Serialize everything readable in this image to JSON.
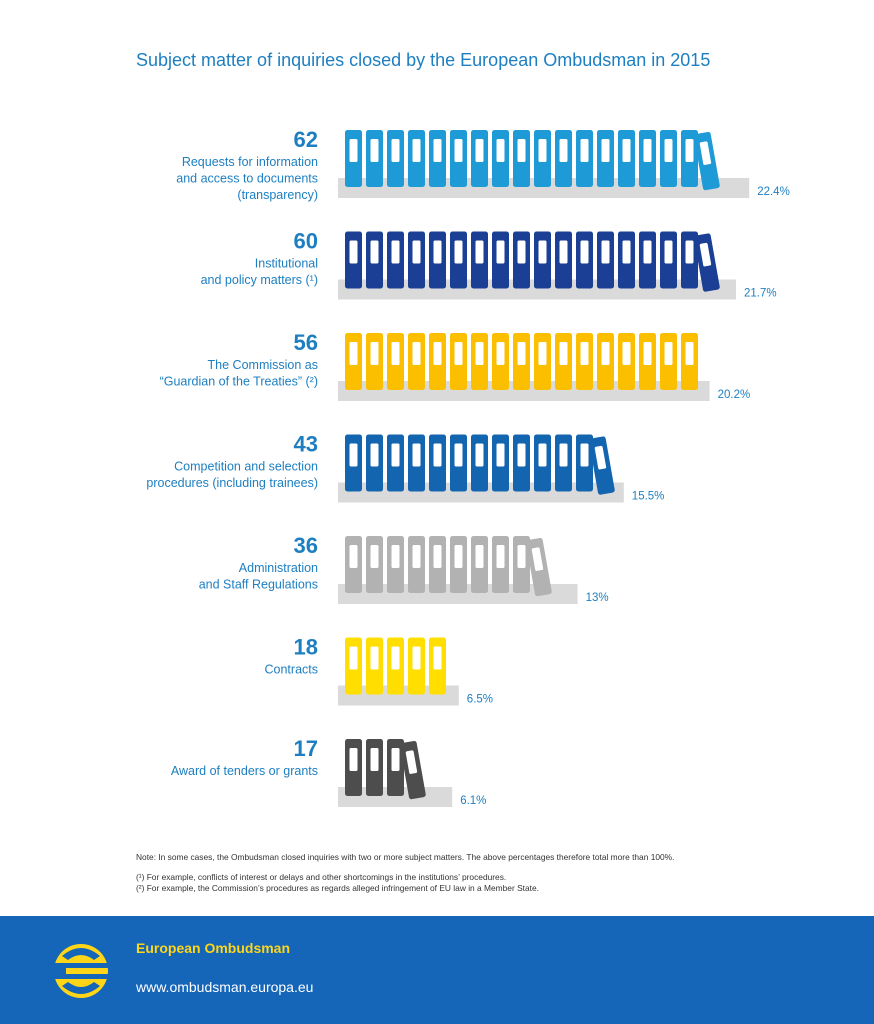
{
  "title": "Subject matter of inquiries closed by the European Ombudsman in 2015",
  "chart_data": {
    "type": "bar",
    "orientation": "horizontal",
    "unit_display": "binders",
    "categories": [
      [
        "Requests for information",
        "and access to documents",
        "(transparency)"
      ],
      [
        "Institutional",
        "and policy matters (¹)"
      ],
      [
        "The Commission as",
        "“Guardian of the Treaties” (²)"
      ],
      [
        "Competition and selection",
        "procedures (including trainees)"
      ],
      [
        "Administration",
        "and Staff Regulations"
      ],
      [
        "Contracts"
      ],
      [
        "Award of tenders or grants"
      ]
    ],
    "values": [
      62,
      60,
      56,
      43,
      36,
      18,
      17
    ],
    "percent_labels": [
      "22.4%",
      "21.7%",
      "20.2%",
      "15.5%",
      "13%",
      "6.5%",
      "6.1%"
    ],
    "colors": [
      "#1e9ad6",
      "#1a3f94",
      "#fbbf00",
      "#1465b0",
      "#b2b2b2",
      "#ffde00",
      "#4d4d4d"
    ],
    "upright_binders": [
      17,
      17,
      17,
      12,
      9,
      5,
      3
    ],
    "tilted_binder": [
      true,
      true,
      false,
      true,
      true,
      false,
      true
    ],
    "shelf_color": "#dadada",
    "percent_color": "#1d7fc1",
    "value_color": "#1d7fc1"
  },
  "notes": {
    "main": "Note: In some cases, the Ombudsman closed inquiries with two or more subject matters. The above percentages therefore total more than 100%.",
    "footnote1": "(¹) For example, conflicts of interest or delays and other shortcomings in the institutions’ procedures.",
    "footnote2": "(²) For example, the Commission’s procedures as regards alleged infringement of EU law in a Member State."
  },
  "footer": {
    "organisation": "European Ombudsman",
    "url": "www.ombudsman.europa.eu",
    "background": "#1565b8",
    "logo_icon": "european-ombudsman-logo-icon"
  }
}
